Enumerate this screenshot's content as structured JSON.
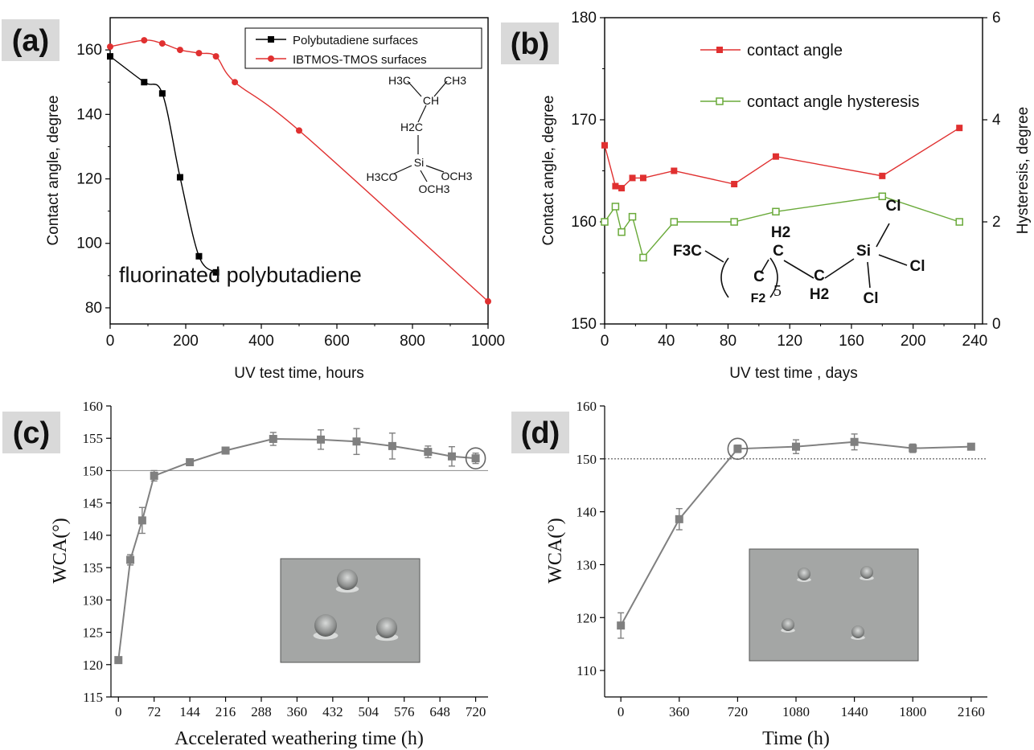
{
  "colors": {
    "black_series": "#000000",
    "red_series": "#e03030",
    "green_series": "#6aaa3a",
    "gray_series": "#808080",
    "tag_bg": "#d9d9d9",
    "inset_bg": "#a4a6a5"
  },
  "chart_data": [
    {
      "panel": "(a)",
      "type": "line",
      "xlabel": "UV test time, hours",
      "ylabel": "Contact angle, degree",
      "xlim": [
        0,
        1000
      ],
      "ylim": [
        75,
        170
      ],
      "xticks": [
        0,
        200,
        400,
        600,
        800,
        1000
      ],
      "yticks": [
        80,
        100,
        120,
        140,
        160
      ],
      "legend_position": "top-right",
      "annotation": "fluorinated polybutadiene",
      "chemical_structure": {
        "labels": [
          "H3C",
          "CH3",
          "CH",
          "H2C",
          "Si",
          "H3CO",
          "OCH3",
          "OCH3"
        ]
      },
      "series": [
        {
          "name": "Polybutadiene surfaces",
          "marker": "square",
          "color_key": "black_series",
          "x": [
            0,
            90,
            138,
            185,
            235,
            280
          ],
          "y": [
            158,
            150,
            146.5,
            120.5,
            96,
            91
          ]
        },
        {
          "name": "IBTMOS-TMOS surfaces",
          "marker": "circle",
          "color_key": "red_series",
          "x": [
            0,
            90,
            138,
            185,
            235,
            280,
            330,
            500,
            1000
          ],
          "y": [
            161,
            163,
            162,
            160,
            159,
            158,
            150,
            135,
            82
          ]
        }
      ]
    },
    {
      "panel": "(b)",
      "type": "line",
      "xlabel": "UV test time , days",
      "ylabel": "Contact angle, degree",
      "y2label": "Hysteresis, degree",
      "xlim": [
        0,
        245
      ],
      "ylim": [
        150,
        180
      ],
      "y2lim": [
        0,
        6
      ],
      "xticks": [
        0,
        40,
        80,
        120,
        160,
        200,
        240
      ],
      "yticks": [
        150,
        160,
        170,
        180
      ],
      "y2ticks": [
        0,
        2,
        4,
        6
      ],
      "legend_position": "top-left",
      "chemical_structure": {
        "labels": [
          "F3C",
          "C",
          "F2",
          "5",
          "H2",
          "C",
          "C",
          "H2",
          "Si",
          "Cl",
          "Cl",
          "Cl"
        ]
      },
      "series": [
        {
          "name": "contact angle",
          "marker": "filled-square",
          "axis": "left",
          "color_key": "red_series",
          "x": [
            0,
            7,
            11,
            18,
            25,
            45,
            84,
            111,
            180,
            230
          ],
          "y": [
            167.5,
            163.5,
            163.3,
            164.3,
            164.3,
            165,
            163.7,
            166.4,
            164.5,
            169.2
          ]
        },
        {
          "name": "contact angle hysteresis",
          "marker": "open-square",
          "axis": "right",
          "color_key": "green_series",
          "x": [
            0,
            7,
            11,
            18,
            25,
            45,
            84,
            111,
            180,
            230
          ],
          "y": [
            2.0,
            2.3,
            1.8,
            2.1,
            1.3,
            2.0,
            2.0,
            2.2,
            2.5,
            2.0
          ]
        }
      ]
    },
    {
      "panel": "(c)",
      "type": "line",
      "xlabel": "Accelerated weathering time (h)",
      "ylabel": "WCA(°)",
      "xlim": [
        -15,
        745
      ],
      "ylim": [
        115,
        160
      ],
      "xticks": [
        0,
        72,
        144,
        216,
        288,
        360,
        432,
        504,
        576,
        648,
        720
      ],
      "yticks": [
        115,
        120,
        125,
        130,
        135,
        140,
        145,
        150,
        155,
        160
      ],
      "reference_line": 150,
      "circled_point_x": 720,
      "inset_image": "water droplets on surface",
      "series": [
        {
          "name": "",
          "marker": "square",
          "color_key": "gray_series",
          "x": [
            0,
            24,
            48,
            72,
            144,
            216,
            312,
            408,
            480,
            552,
            624,
            672,
            720
          ],
          "y": [
            120.7,
            136.2,
            142.3,
            149.2,
            151.3,
            153.1,
            154.9,
            154.8,
            154.5,
            153.8,
            152.9,
            152.2,
            151.9
          ],
          "err": [
            0,
            0.8,
            2.0,
            0.8,
            0.5,
            0.3,
            1.0,
            1.5,
            2.0,
            2.0,
            0.9,
            1.5,
            0.8
          ]
        }
      ]
    },
    {
      "panel": "(d)",
      "type": "line",
      "xlabel": "Time (h)",
      "ylabel": "WCA(°)",
      "xlim": [
        -100,
        2260
      ],
      "ylim": [
        105,
        160
      ],
      "xticks": [
        0,
        360,
        720,
        1080,
        1440,
        1800,
        2160
      ],
      "yticks": [
        110,
        120,
        130,
        140,
        150,
        160
      ],
      "reference_line": 150,
      "circled_point_x": 720,
      "inset_image": "water droplets on surface",
      "series": [
        {
          "name": "",
          "marker": "square",
          "color_key": "gray_series",
          "x": [
            0,
            360,
            720,
            1080,
            1440,
            1800,
            2160
          ],
          "y": [
            118.5,
            138.6,
            151.9,
            152.3,
            153.2,
            152.0,
            152.3
          ],
          "err": [
            2.4,
            2.0,
            0.7,
            1.3,
            1.5,
            0.8,
            0.4
          ]
        }
      ]
    }
  ]
}
